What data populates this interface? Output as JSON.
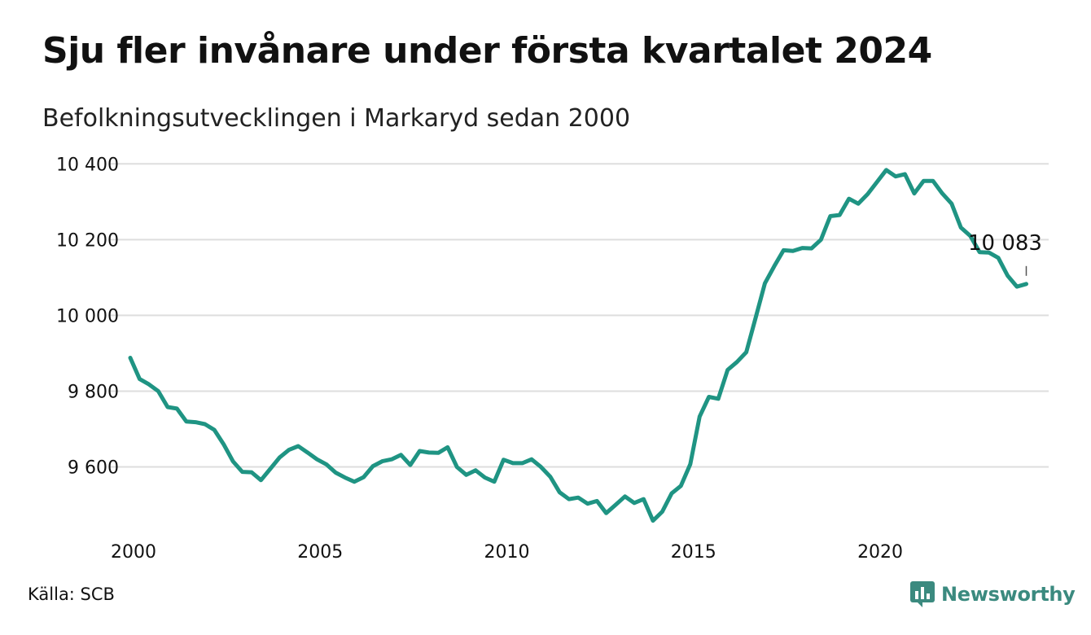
{
  "title": "Sju fler invånare under första kvartalet 2024",
  "subtitle": "Befolkningsutvecklingen i Markaryd sedan 2000",
  "source": "Källa: SCB",
  "brand": "Newsworthy",
  "colors": {
    "line": "#1f9483",
    "grid": "#dedede",
    "brand": "#3b8a7f"
  },
  "chart_data": {
    "type": "line",
    "title": "Sju fler invånare under första kvartalet 2024",
    "subtitle": "Befolkningsutvecklingen i Markaryd sedan 2000",
    "xlabel": "",
    "ylabel": "",
    "ylim": [
      9440,
      10420
    ],
    "xlim": [
      2000,
      2024.6
    ],
    "y_ticks": [
      9600,
      9800,
      10000,
      10200,
      10400
    ],
    "y_tick_labels": [
      "9 600",
      "9 800",
      "10 000",
      "10 200",
      "10 400"
    ],
    "x_ticks": [
      2000,
      2005,
      2010,
      2015,
      2020
    ],
    "x_tick_labels": [
      "2000",
      "2005",
      "2010",
      "2015",
      "2020"
    ],
    "grid": true,
    "annotation": {
      "label": "10 083",
      "x": 2024.0,
      "y": 10083
    },
    "series": [
      {
        "x": [
          2000.0,
          2000.25,
          2000.5,
          2000.75,
          2001.0,
          2001.25,
          2001.5,
          2001.75,
          2002.0,
          2002.25,
          2002.5,
          2002.75,
          2003.0,
          2003.25,
          2003.5,
          2003.75,
          2004.0,
          2004.25,
          2004.5,
          2004.75,
          2005.0,
          2005.25,
          2005.5,
          2005.75,
          2006.0,
          2006.25,
          2006.5,
          2006.75,
          2007.0,
          2007.25,
          2007.5,
          2007.75,
          2008.0,
          2008.25,
          2008.5,
          2008.75,
          2009.0,
          2009.25,
          2009.5,
          2009.75,
          2010.0,
          2010.25,
          2010.5,
          2010.75,
          2011.0,
          2011.25,
          2011.5,
          2011.75,
          2012.0,
          2012.25,
          2012.5,
          2012.75,
          2013.0,
          2013.25,
          2013.5,
          2013.75,
          2014.0,
          2014.25,
          2014.5,
          2014.75,
          2015.0,
          2015.25,
          2015.5,
          2015.75,
          2016.0,
          2016.25,
          2016.5,
          2016.75,
          2017.0,
          2017.25,
          2017.5,
          2017.75,
          2018.0,
          2018.25,
          2018.5,
          2018.75,
          2019.0,
          2019.25,
          2019.5,
          2019.75,
          2020.0,
          2020.25,
          2020.5,
          2020.75,
          2021.0,
          2021.25,
          2021.5,
          2021.75,
          2022.0,
          2022.25,
          2022.5,
          2022.75,
          2023.0,
          2023.25,
          2023.5,
          2023.75,
          2024.0
        ],
        "values": [
          9888,
          9832,
          9818,
          9800,
          9758,
          9754,
          9720,
          9718,
          9713,
          9698,
          9660,
          9615,
          9587,
          9586,
          9565,
          9595,
          9625,
          9645,
          9655,
          9638,
          9620,
          9607,
          9585,
          9572,
          9561,
          9573,
          9602,
          9615,
          9620,
          9632,
          9605,
          9642,
          9638,
          9637,
          9652,
          9600,
          9579,
          9591,
          9572,
          9561,
          9619,
          9610,
          9610,
          9620,
          9600,
          9574,
          9533,
          9515,
          9519,
          9503,
          9510,
          9478,
          9500,
          9522,
          9505,
          9515,
          9458,
          9482,
          9530,
          9550,
          9607,
          9733,
          9785,
          9780,
          9856,
          9877,
          9903,
          9993,
          10085,
          10130,
          10172,
          10170,
          10178,
          10177,
          10200,
          10262,
          10265,
          10308,
          10295,
          10320,
          10352,
          10384,
          10367,
          10373,
          10322,
          10355,
          10355,
          10322,
          10295,
          10232,
          10210,
          10167,
          10166,
          10152,
          10105,
          10076,
          10083
        ]
      }
    ]
  }
}
